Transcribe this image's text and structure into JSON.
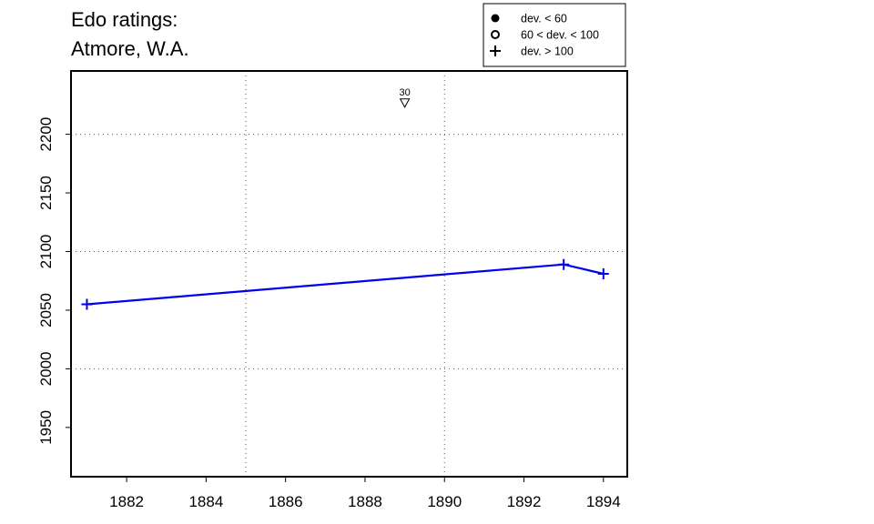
{
  "chart_data": {
    "type": "line",
    "title_lines": [
      "Edo ratings:",
      "Atmore, W.A."
    ],
    "xlabel": "",
    "ylabel": "",
    "xlim": [
      1880.6,
      1894.6
    ],
    "ylim": [
      1908,
      2254
    ],
    "x_ticks": [
      1882,
      1884,
      1886,
      1888,
      1890,
      1892,
      1894
    ],
    "y_ticks": [
      1950,
      2000,
      2050,
      2100,
      2150,
      2200
    ],
    "x_grid": [
      1885,
      1890
    ],
    "y_grid": [
      2000,
      2100,
      2200
    ],
    "grid": true,
    "series": [
      {
        "color": "#0000ee",
        "marker": "plus",
        "x": [
          1881,
          1893,
          1894
        ],
        "y": [
          2055,
          2089,
          2081
        ]
      }
    ],
    "annotations": [
      {
        "x": 1889,
        "y": 2227,
        "marker": "triangle-down",
        "label": "30"
      }
    ],
    "legend": {
      "position": "top-right",
      "entries": [
        {
          "marker": "filled-circle",
          "label": "dev. < 60"
        },
        {
          "marker": "open-circle",
          "label": "60 < dev. < 100"
        },
        {
          "marker": "plus",
          "label": "dev. > 100"
        }
      ]
    }
  }
}
